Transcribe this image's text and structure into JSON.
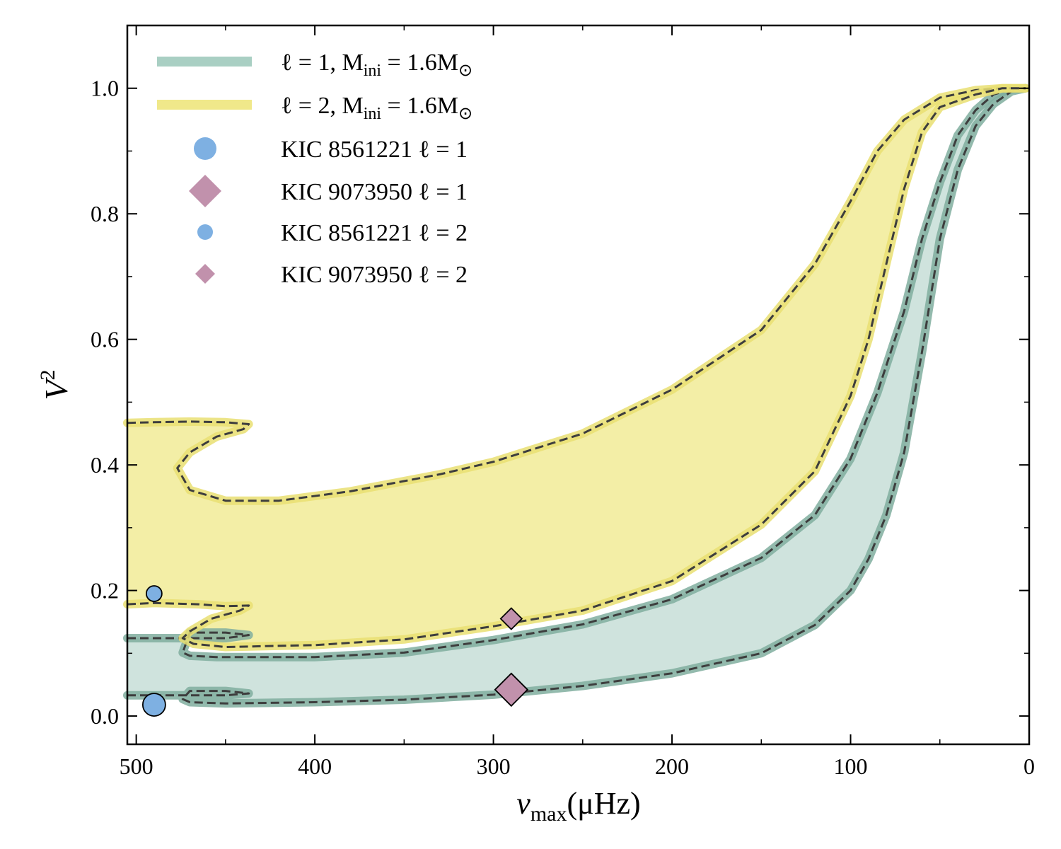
{
  "chart_data": {
    "type": "area",
    "x_axis": {
      "label_main": "ν",
      "label_sub": "max",
      "label_unit": "(μHz)",
      "range": [
        505,
        0
      ],
      "ticks": [
        500,
        400,
        300,
        200,
        100,
        0
      ],
      "tick_labels": [
        "500",
        "400",
        "300",
        "200",
        "100",
        "0"
      ]
    },
    "y_axis": {
      "label_main": "V",
      "label_sup": "2",
      "range": [
        -0.045,
        1.1
      ],
      "ticks": [
        0.0,
        0.2,
        0.4,
        0.6,
        0.8,
        1.0
      ],
      "tick_labels": [
        "0.0",
        "0.2",
        "0.4",
        "0.6",
        "0.8",
        "1.0"
      ]
    },
    "grid": false,
    "legend_placement": "top-left",
    "colors": {
      "l1_band": "#a9cfc3",
      "l1_fill": "#cfe3dd",
      "l1_edge": "#80ae9f",
      "l2_band": "#f0e88a",
      "l2_fill": "#f3eea6",
      "l2_edge": "#e9df72",
      "kic8561221": "#7eb0e2",
      "kic9073950": "#c191ac"
    },
    "series": [
      {
        "name": "ℓ = 1, M",
        "name_sub": "ini",
        "name_tail": " = 1.6M",
        "name_sun": "⊙",
        "kind": "band",
        "color_key": "l1",
        "upper": [
          [
            505,
            0.124
          ],
          [
            480,
            0.124
          ],
          [
            450,
            0.124
          ],
          [
            437,
            0.129
          ],
          [
            450,
            0.133
          ],
          [
            470,
            0.133
          ],
          [
            474,
            0.101
          ],
          [
            470,
            0.096
          ],
          [
            455,
            0.094
          ],
          [
            400,
            0.094
          ],
          [
            350,
            0.101
          ],
          [
            300,
            0.121
          ],
          [
            250,
            0.146
          ],
          [
            200,
            0.186
          ],
          [
            150,
            0.252
          ],
          [
            120,
            0.32
          ],
          [
            100,
            0.41
          ],
          [
            85,
            0.515
          ],
          [
            70,
            0.645
          ],
          [
            60,
            0.76
          ],
          [
            50,
            0.85
          ],
          [
            40,
            0.925
          ],
          [
            30,
            0.965
          ],
          [
            20,
            0.99
          ],
          [
            10,
            0.998
          ],
          [
            2,
            1.0
          ]
        ],
        "lower": [
          [
            505,
            0.033
          ],
          [
            480,
            0.033
          ],
          [
            450,
            0.033
          ],
          [
            437,
            0.036
          ],
          [
            450,
            0.04
          ],
          [
            470,
            0.04
          ],
          [
            474,
            0.027
          ],
          [
            470,
            0.022
          ],
          [
            450,
            0.02
          ],
          [
            400,
            0.022
          ],
          [
            350,
            0.026
          ],
          [
            300,
            0.034
          ],
          [
            250,
            0.048
          ],
          [
            200,
            0.068
          ],
          [
            150,
            0.1
          ],
          [
            120,
            0.145
          ],
          [
            100,
            0.2
          ],
          [
            90,
            0.25
          ],
          [
            80,
            0.32
          ],
          [
            70,
            0.42
          ],
          [
            60,
            0.58
          ],
          [
            50,
            0.76
          ],
          [
            40,
            0.87
          ],
          [
            30,
            0.94
          ],
          [
            20,
            0.975
          ],
          [
            10,
            0.995
          ],
          [
            2,
            1.0
          ]
        ]
      },
      {
        "name": "ℓ = 2, M",
        "name_sub": "ini",
        "name_tail": " = 1.6M",
        "name_sun": "⊙",
        "kind": "band",
        "color_key": "l2",
        "upper": [
          [
            505,
            0.467
          ],
          [
            490,
            0.468
          ],
          [
            470,
            0.469
          ],
          [
            450,
            0.468
          ],
          [
            437,
            0.465
          ],
          [
            440,
            0.457
          ],
          [
            455,
            0.445
          ],
          [
            470,
            0.42
          ],
          [
            477,
            0.395
          ],
          [
            470,
            0.36
          ],
          [
            450,
            0.343
          ],
          [
            420,
            0.343
          ],
          [
            380,
            0.358
          ],
          [
            330,
            0.385
          ],
          [
            300,
            0.405
          ],
          [
            250,
            0.45
          ],
          [
            200,
            0.52
          ],
          [
            150,
            0.615
          ],
          [
            120,
            0.72
          ],
          [
            100,
            0.82
          ],
          [
            85,
            0.9
          ],
          [
            70,
            0.95
          ],
          [
            50,
            0.985
          ],
          [
            30,
            0.997
          ],
          [
            15,
            1.0
          ],
          [
            2,
            1.0
          ]
        ],
        "lower": [
          [
            505,
            0.178
          ],
          [
            490,
            0.18
          ],
          [
            465,
            0.178
          ],
          [
            450,
            0.175
          ],
          [
            437,
            0.176
          ],
          [
            442,
            0.168
          ],
          [
            458,
            0.155
          ],
          [
            470,
            0.135
          ],
          [
            474,
            0.124
          ],
          [
            468,
            0.115
          ],
          [
            450,
            0.11
          ],
          [
            400,
            0.113
          ],
          [
            350,
            0.122
          ],
          [
            300,
            0.143
          ],
          [
            250,
            0.168
          ],
          [
            200,
            0.215
          ],
          [
            150,
            0.305
          ],
          [
            120,
            0.39
          ],
          [
            100,
            0.51
          ],
          [
            90,
            0.6
          ],
          [
            80,
            0.72
          ],
          [
            70,
            0.84
          ],
          [
            60,
            0.93
          ],
          [
            50,
            0.97
          ],
          [
            30,
            0.99
          ],
          [
            15,
            1.0
          ],
          [
            2,
            1.0
          ]
        ]
      },
      {
        "name": "KIC 8561221 ℓ = 1",
        "kind": "point",
        "marker": "circle",
        "size": "large",
        "color_key": "kic8561221",
        "points": [
          [
            490,
            0.018
          ]
        ]
      },
      {
        "name": "KIC 9073950 ℓ = 1",
        "kind": "point",
        "marker": "diamond",
        "size": "large",
        "color_key": "kic9073950",
        "points": [
          [
            290,
            0.042
          ]
        ]
      },
      {
        "name": "KIC 8561221 ℓ = 2",
        "kind": "point",
        "marker": "circle",
        "size": "small",
        "color_key": "kic8561221",
        "points": [
          [
            490,
            0.195
          ]
        ]
      },
      {
        "name": "KIC 9073950 ℓ = 2",
        "kind": "point",
        "marker": "diamond",
        "size": "small",
        "color_key": "kic9073950",
        "points": [
          [
            290,
            0.155
          ]
        ]
      }
    ]
  }
}
